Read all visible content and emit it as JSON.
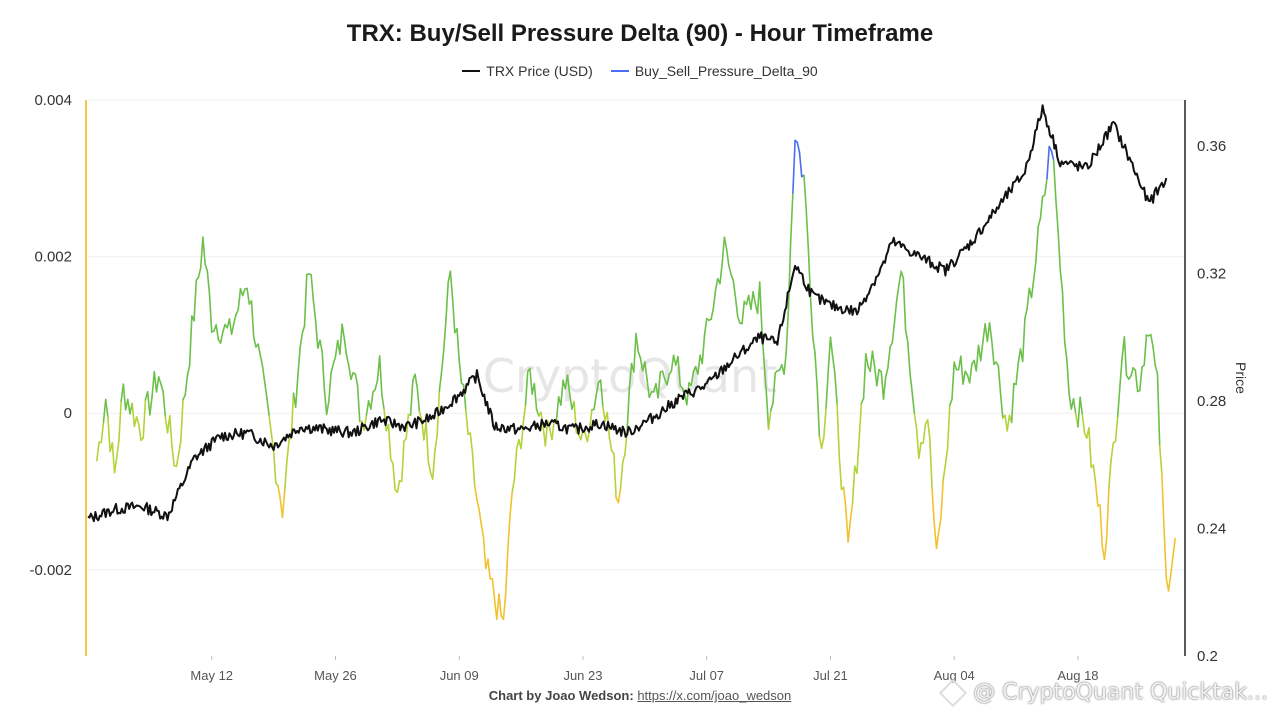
{
  "chart": {
    "title": "TRX: Buy/Sell Pressure Delta (90) - Hour Timeframe",
    "watermark": "CryptoQuant",
    "credit_prefix": "Chart by Joao Wedson:",
    "credit_link": "https://x.com/joao_wedson",
    "footer_brand": "@ CryptoQuant Quicktak..."
  },
  "colors": {
    "price": "#111111",
    "delta_blue": "#4a6cf0",
    "delta_green": "#6cc04a",
    "delta_lime": "#b3d33a",
    "delta_yellow": "#f2c12e",
    "grid": "#f0f0f0",
    "left_axis": "#f2c94c",
    "right_axis": "#222222"
  },
  "chart_data": {
    "type": "line",
    "title": "TRX: Buy/Sell Pressure Delta (90) - Hour Timeframe",
    "legend_position": "top-center",
    "grid": true,
    "x_tick_labels": [
      "May 12",
      "May 26",
      "Jun 09",
      "Jun 23",
      "Jul 07",
      "Jul 21",
      "Aug 04",
      "Aug 18"
    ],
    "y_left": {
      "ticks": [
        "0.004",
        "0.002",
        "0",
        "-0.002"
      ],
      "range": [
        -0.0031,
        0.004
      ]
    },
    "y_right": {
      "label": "Price",
      "ticks": [
        "0.36",
        "0.32",
        "0.28",
        "0.24",
        "0.2"
      ],
      "range": [
        0.2,
        0.3745
      ]
    },
    "x_range": [
      "2025-04-28",
      "2025-08-30"
    ],
    "series": [
      {
        "name": "TRX Price (USD)",
        "axis": "right",
        "x": [
          "2025-04-28",
          "2025-05-01",
          "2025-05-04",
          "2025-05-07",
          "2025-05-10",
          "2025-05-13",
          "2025-05-16",
          "2025-05-19",
          "2025-05-22",
          "2025-05-25",
          "2025-05-28",
          "2025-05-31",
          "2025-06-03",
          "2025-06-06",
          "2025-06-09",
          "2025-06-11",
          "2025-06-13",
          "2025-06-16",
          "2025-06-19",
          "2025-06-22",
          "2025-06-25",
          "2025-06-28",
          "2025-07-01",
          "2025-07-04",
          "2025-07-07",
          "2025-07-10",
          "2025-07-13",
          "2025-07-15",
          "2025-07-17",
          "2025-07-19",
          "2025-07-21",
          "2025-07-24",
          "2025-07-27",
          "2025-07-28",
          "2025-07-30",
          "2025-08-03",
          "2025-08-06",
          "2025-08-09",
          "2025-08-12",
          "2025-08-14",
          "2025-08-16",
          "2025-08-19",
          "2025-08-22",
          "2025-08-24",
          "2025-08-26",
          "2025-08-28"
        ],
        "values": [
          0.243,
          0.246,
          0.247,
          0.244,
          0.262,
          0.269,
          0.27,
          0.266,
          0.272,
          0.271,
          0.27,
          0.274,
          0.272,
          0.275,
          0.282,
          0.288,
          0.272,
          0.271,
          0.273,
          0.271,
          0.273,
          0.27,
          0.275,
          0.281,
          0.285,
          0.293,
          0.3,
          0.298,
          0.323,
          0.313,
          0.31,
          0.308,
          0.323,
          0.33,
          0.327,
          0.321,
          0.33,
          0.341,
          0.352,
          0.372,
          0.355,
          0.353,
          0.367,
          0.355,
          0.342,
          0.35
        ]
      },
      {
        "name": "Buy_Sell_Pressure_Delta_90",
        "axis": "left",
        "x": [
          "2025-04-29",
          "2025-04-30",
          "2025-05-01",
          "2025-05-02",
          "2025-05-04",
          "2025-05-06",
          "2025-05-08",
          "2025-05-10",
          "2025-05-11",
          "2025-05-12",
          "2025-05-14",
          "2025-05-16",
          "2025-05-18",
          "2025-05-20",
          "2025-05-22",
          "2025-05-23",
          "2025-05-25",
          "2025-05-27",
          "2025-05-29",
          "2025-05-31",
          "2025-06-02",
          "2025-06-04",
          "2025-06-06",
          "2025-06-08",
          "2025-06-09",
          "2025-06-11",
          "2025-06-12",
          "2025-06-14",
          "2025-06-15",
          "2025-06-17",
          "2025-06-19",
          "2025-06-21",
          "2025-06-23",
          "2025-06-25",
          "2025-06-27",
          "2025-06-29",
          "2025-07-01",
          "2025-07-03",
          "2025-07-05",
          "2025-07-07",
          "2025-07-09",
          "2025-07-11",
          "2025-07-13",
          "2025-07-14",
          "2025-07-16",
          "2025-07-17",
          "2025-07-18",
          "2025-07-19",
          "2025-07-20",
          "2025-07-21",
          "2025-07-23",
          "2025-07-25",
          "2025-07-27",
          "2025-07-29",
          "2025-07-31",
          "2025-08-01",
          "2025-08-02",
          "2025-08-04",
          "2025-08-06",
          "2025-08-08",
          "2025-08-10",
          "2025-08-12",
          "2025-08-14",
          "2025-08-15",
          "2025-08-17",
          "2025-08-19",
          "2025-08-21",
          "2025-08-23",
          "2025-08-25",
          "2025-08-26",
          "2025-08-27",
          "2025-08-28",
          "2025-08-29"
        ],
        "values": [
          -0.0006,
          0.0002,
          -0.0008,
          0.0003,
          -0.0002,
          0.0005,
          -0.0007,
          0.0013,
          0.0022,
          0.0012,
          0.001,
          0.0017,
          0.0002,
          -0.0012,
          0.0008,
          0.0018,
          0.0002,
          0.0011,
          -0.0001,
          0.0006,
          -0.001,
          0.0004,
          -0.0007,
          0.0018,
          0.0006,
          -0.0011,
          -0.002,
          -0.0027,
          -0.001,
          0.0005,
          -0.0003,
          0.0004,
          -0.0004,
          0.0005,
          -0.0011,
          0.001,
          0.0001,
          0.0007,
          0.0002,
          0.001,
          0.0021,
          0.0012,
          0.0015,
          0.0,
          0.0008,
          0.0036,
          0.003,
          0.0012,
          -0.0005,
          0.001,
          -0.0018,
          0.0007,
          0.0004,
          0.0018,
          -0.0004,
          0.0,
          -0.0019,
          0.0006,
          0.0005,
          0.0012,
          -0.0002,
          0.001,
          0.0026,
          0.0035,
          0.0003,
          -0.0002,
          -0.0017,
          0.0008,
          0.0004,
          0.0012,
          0.0003,
          -0.0022,
          -0.0016
        ]
      }
    ]
  }
}
